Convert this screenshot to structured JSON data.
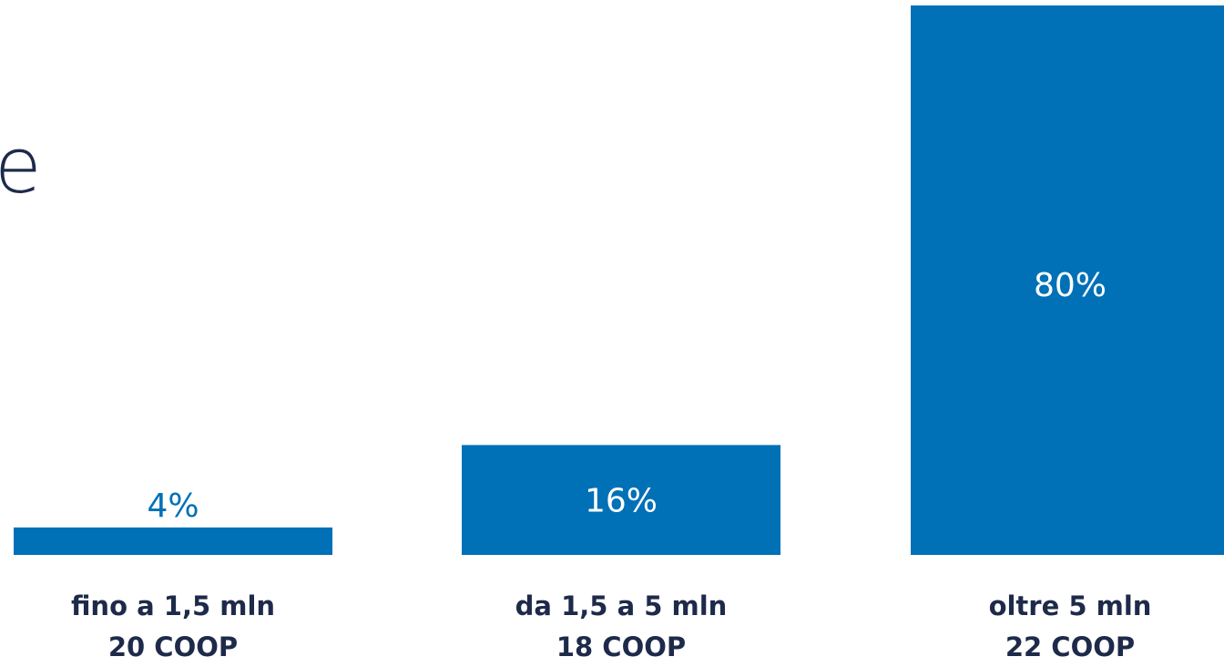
{
  "partial_title": "e",
  "chart_data": {
    "type": "bar",
    "categories": [
      [
        "fino a 1,5 mln",
        "20 COOP"
      ],
      [
        "da 1,5 a 5 mln",
        "18 COOP"
      ],
      [
        "oltre 5 mln",
        "22 COOP"
      ]
    ],
    "values": [
      4,
      16,
      80
    ],
    "value_labels": [
      "4%",
      "16%",
      "80%"
    ],
    "ylim": [
      0,
      80
    ],
    "grid": false,
    "colors": {
      "bar": "#0070b7",
      "label_outside": "#0070b7",
      "label_inside": "#ffffff",
      "category_text": "#1e2a4a",
      "title_text": "#1e2a4a"
    }
  }
}
